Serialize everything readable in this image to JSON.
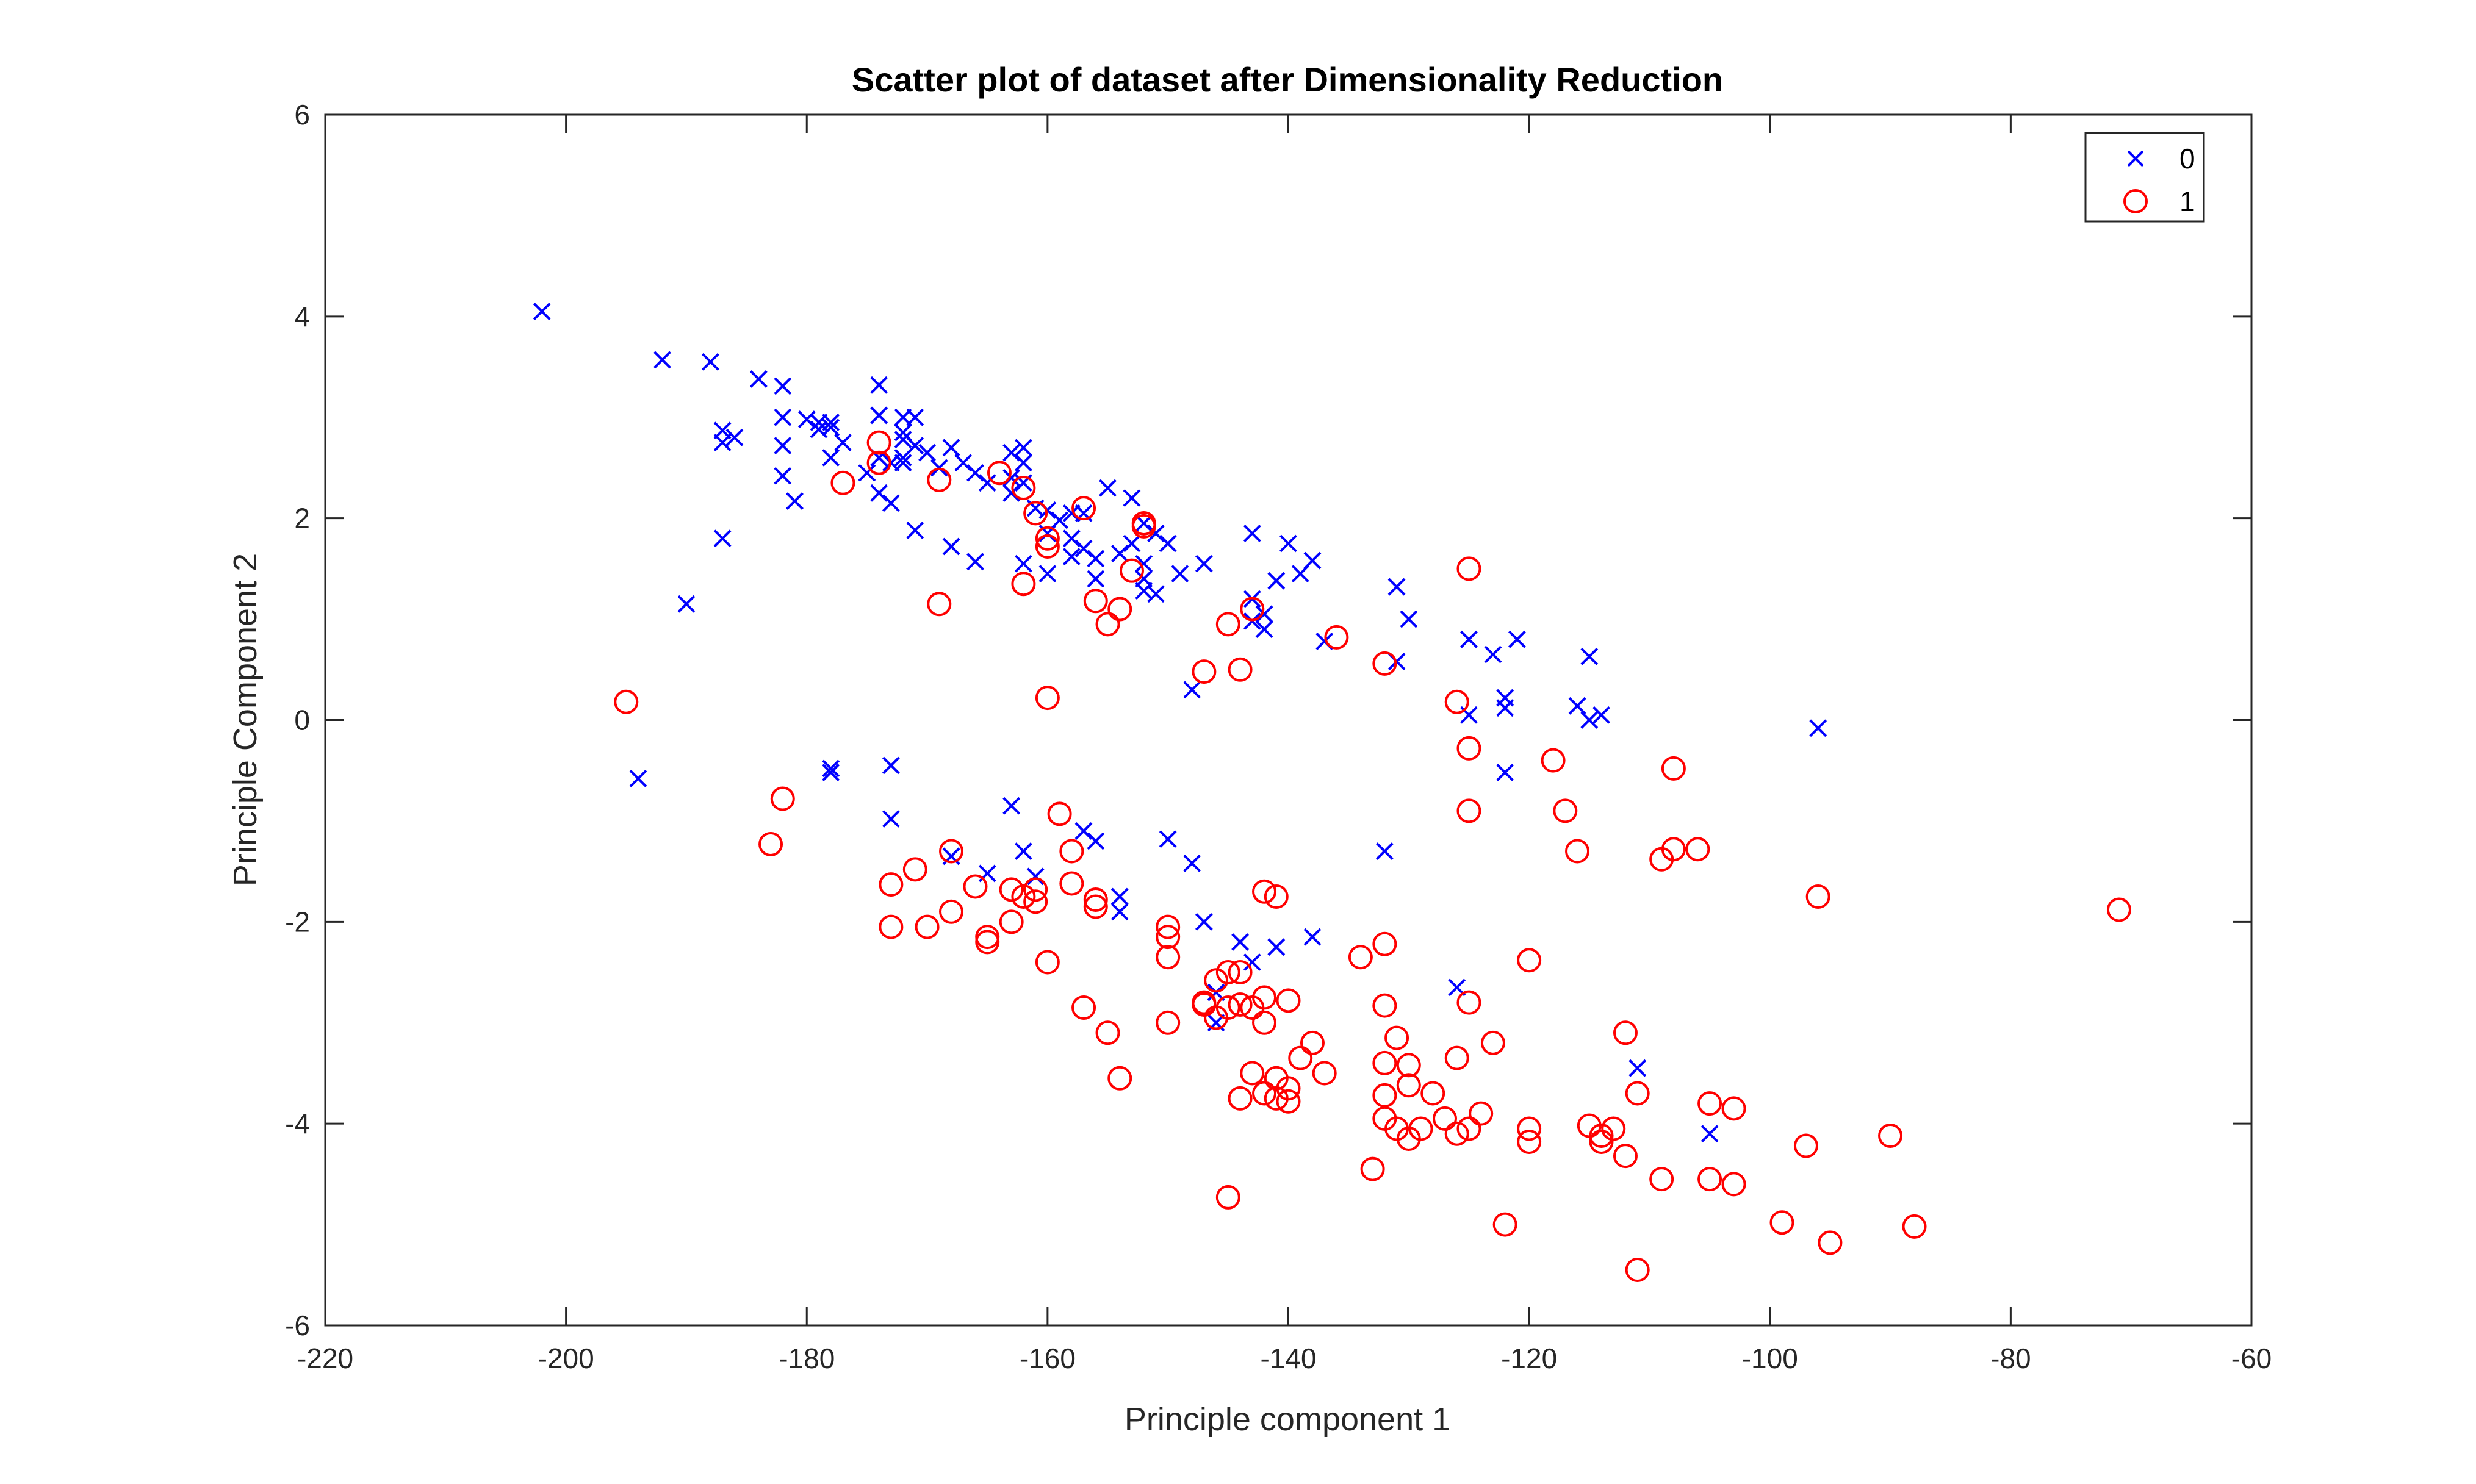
{
  "chart_data": {
    "type": "scatter",
    "title": "Scatter plot of dataset after Dimensionality Reduction",
    "xlabel": "Principle component 1",
    "ylabel": "Principle Component 2",
    "xlim": [
      -220,
      -60
    ],
    "ylim": [
      -6,
      6
    ],
    "xticks": [
      -220,
      -200,
      -180,
      -160,
      -140,
      -120,
      -100,
      -80,
      -60
    ],
    "yticks": [
      -6,
      -4,
      -2,
      0,
      2,
      4,
      6
    ],
    "grid": false,
    "legend": {
      "placement": "top-right",
      "entries": [
        "0",
        "1"
      ]
    },
    "series": [
      {
        "name": "0",
        "marker": "x",
        "color": "#0000ff",
        "points": [
          [
            -202,
            4.05
          ],
          [
            -192,
            3.57
          ],
          [
            -188,
            3.55
          ],
          [
            -184,
            3.38
          ],
          [
            -182,
            3.31
          ],
          [
            -187,
            2.87
          ],
          [
            -186,
            2.8
          ],
          [
            -187,
            2.75
          ],
          [
            -182,
            3.0
          ],
          [
            -182,
            2.72
          ],
          [
            -182,
            2.42
          ],
          [
            -181,
            2.17
          ],
          [
            -187,
            1.8
          ],
          [
            -190,
            1.15
          ],
          [
            -180,
            2.98
          ],
          [
            -179,
            2.95
          ],
          [
            -178,
            2.95
          ],
          [
            -178,
            2.9
          ],
          [
            -179,
            2.88
          ],
          [
            -177,
            2.75
          ],
          [
            -178,
            2.6
          ],
          [
            -174,
            3.32
          ],
          [
            -174,
            3.02
          ],
          [
            -172,
            3.0
          ],
          [
            -171,
            3.0
          ],
          [
            -172,
            2.85
          ],
          [
            -172,
            2.78
          ],
          [
            -171,
            2.72
          ],
          [
            -175,
            2.45
          ],
          [
            -174,
            2.6
          ],
          [
            -173,
            2.55
          ],
          [
            -172,
            2.6
          ],
          [
            -172,
            2.55
          ],
          [
            -170,
            2.65
          ],
          [
            -169,
            2.5
          ],
          [
            -168,
            2.7
          ],
          [
            -167,
            2.55
          ],
          [
            -166,
            2.45
          ],
          [
            -165,
            2.35
          ],
          [
            -174,
            2.25
          ],
          [
            -173,
            2.15
          ],
          [
            -171,
            1.88
          ],
          [
            -168,
            1.72
          ],
          [
            -166,
            1.57
          ],
          [
            -163,
            2.65
          ],
          [
            -162,
            2.7
          ],
          [
            -162,
            2.55
          ],
          [
            -163,
            2.4
          ],
          [
            -162,
            2.35
          ],
          [
            -163,
            2.25
          ],
          [
            -161,
            2.1
          ],
          [
            -160,
            2.08
          ],
          [
            -158,
            2.05
          ],
          [
            -159,
            1.98
          ],
          [
            -157,
            2.05
          ],
          [
            -155,
            2.3
          ],
          [
            -153,
            2.2
          ],
          [
            -152,
            1.95
          ],
          [
            -160,
            1.85
          ],
          [
            -158,
            1.8
          ],
          [
            -157,
            1.7
          ],
          [
            -156,
            1.6
          ],
          [
            -154,
            1.65
          ],
          [
            -153,
            1.75
          ],
          [
            -151,
            1.85
          ],
          [
            -150,
            1.75
          ],
          [
            -152,
            1.55
          ],
          [
            -152,
            1.4
          ],
          [
            -152,
            1.28
          ],
          [
            -151,
            1.25
          ],
          [
            -149,
            1.45
          ],
          [
            -147,
            1.55
          ],
          [
            -160,
            1.45
          ],
          [
            -162,
            1.55
          ],
          [
            -158,
            1.62
          ],
          [
            -156,
            1.4
          ],
          [
            -148,
            0.3
          ],
          [
            -143,
            1.85
          ],
          [
            -140,
            1.75
          ],
          [
            -138,
            1.58
          ],
          [
            -139,
            1.45
          ],
          [
            -141,
            1.38
          ],
          [
            -143,
            1.2
          ],
          [
            -142,
            1.05
          ],
          [
            -143,
            0.98
          ],
          [
            -142,
            0.9
          ],
          [
            -137,
            0.78
          ],
          [
            -131,
            1.32
          ],
          [
            -130,
            1.0
          ],
          [
            -131,
            0.58
          ],
          [
            -125,
            0.8
          ],
          [
            -123,
            0.65
          ],
          [
            -121,
            0.8
          ],
          [
            -122,
            0.22
          ],
          [
            -122,
            0.12
          ],
          [
            -125,
            0.05
          ],
          [
            -122,
            -0.52
          ],
          [
            -116,
            0.14
          ],
          [
            -115,
            0.63
          ],
          [
            -115,
            0.0
          ],
          [
            -114,
            0.05
          ],
          [
            -96,
            -0.08
          ],
          [
            -194,
            -0.58
          ],
          [
            -178,
            -0.48
          ],
          [
            -178,
            -0.52
          ],
          [
            -173,
            -0.45
          ],
          [
            -173,
            -0.98
          ],
          [
            -163,
            -0.85
          ],
          [
            -162,
            -1.3
          ],
          [
            -161,
            -1.55
          ],
          [
            -165,
            -1.52
          ],
          [
            -168,
            -1.35
          ],
          [
            -157,
            -1.1
          ],
          [
            -156,
            -1.2
          ],
          [
            -154,
            -1.75
          ],
          [
            -154,
            -1.9
          ],
          [
            -150,
            -1.18
          ],
          [
            -148,
            -1.42
          ],
          [
            -147,
            -2.0
          ],
          [
            -144,
            -2.2
          ],
          [
            -143,
            -2.4
          ],
          [
            -141,
            -2.25
          ],
          [
            -138,
            -2.15
          ],
          [
            -146,
            -2.7
          ],
          [
            -146,
            -3.0
          ],
          [
            -132,
            -1.3
          ],
          [
            -126,
            -2.65
          ],
          [
            -111,
            -3.45
          ],
          [
            -105,
            -4.1
          ]
        ]
      },
      {
        "name": "1",
        "marker": "o",
        "color": "#ff0000",
        "points": [
          [
            -195,
            0.18
          ],
          [
            -174,
            2.75
          ],
          [
            -174,
            2.55
          ],
          [
            -177,
            2.35
          ],
          [
            -169,
            2.38
          ],
          [
            -169,
            1.15
          ],
          [
            -164,
            2.45
          ],
          [
            -162,
            2.3
          ],
          [
            -161,
            2.05
          ],
          [
            -160,
            1.8
          ],
          [
            -160,
            1.72
          ],
          [
            -162,
            1.35
          ],
          [
            -157,
            2.1
          ],
          [
            -156,
            1.18
          ],
          [
            -155,
            0.95
          ],
          [
            -154,
            1.1
          ],
          [
            -153,
            1.48
          ],
          [
            -152,
            1.92
          ],
          [
            -152,
            1.95
          ],
          [
            -160,
            0.22
          ],
          [
            -147,
            0.48
          ],
          [
            -145,
            0.95
          ],
          [
            -144,
            0.5
          ],
          [
            -143,
            1.1
          ],
          [
            -136,
            0.82
          ],
          [
            -132,
            0.56
          ],
          [
            -125,
            1.5
          ],
          [
            -126,
            0.18
          ],
          [
            -125,
            -0.28
          ],
          [
            -125,
            -0.9
          ],
          [
            -118,
            -0.4
          ],
          [
            -117,
            -0.9
          ],
          [
            -116,
            -1.3
          ],
          [
            -108,
            -0.48
          ],
          [
            -108,
            -1.28
          ],
          [
            -109,
            -1.38
          ],
          [
            -106,
            -1.28
          ],
          [
            -96,
            -1.75
          ],
          [
            -71,
            -1.88
          ],
          [
            -182,
            -0.78
          ],
          [
            -183,
            -1.23
          ],
          [
            -171,
            -1.48
          ],
          [
            -173,
            -1.63
          ],
          [
            -168,
            -1.3
          ],
          [
            -173,
            -2.05
          ],
          [
            -170,
            -2.05
          ],
          [
            -168,
            -1.9
          ],
          [
            -166,
            -1.65
          ],
          [
            -165,
            -2.15
          ],
          [
            -165,
            -2.2
          ],
          [
            -163,
            -2.0
          ],
          [
            -163,
            -1.68
          ],
          [
            -162,
            -1.75
          ],
          [
            -161,
            -1.68
          ],
          [
            -161,
            -1.8
          ],
          [
            -159,
            -0.93
          ],
          [
            -158,
            -1.3
          ],
          [
            -158,
            -1.62
          ],
          [
            -156,
            -1.85
          ],
          [
            -156,
            -1.78
          ],
          [
            -160,
            -2.4
          ],
          [
            -157,
            -2.85
          ],
          [
            -155,
            -3.1
          ],
          [
            -154,
            -3.55
          ],
          [
            -150,
            -2.05
          ],
          [
            -150,
            -2.15
          ],
          [
            -150,
            -2.35
          ],
          [
            -150,
            -3.0
          ],
          [
            -147,
            -2.8
          ],
          [
            -147,
            -2.82
          ],
          [
            -146,
            -2.58
          ],
          [
            -145,
            -2.5
          ],
          [
            -144,
            -2.5
          ],
          [
            -145,
            -2.85
          ],
          [
            -144,
            -2.82
          ],
          [
            -143,
            -2.85
          ],
          [
            -142,
            -2.75
          ],
          [
            -142,
            -3.0
          ],
          [
            -140,
            -2.78
          ],
          [
            -146,
            -2.95
          ],
          [
            -142,
            -1.7
          ],
          [
            -141,
            -1.75
          ],
          [
            -139,
            -3.35
          ],
          [
            -138,
            -3.2
          ],
          [
            -137,
            -3.5
          ],
          [
            -143,
            -3.5
          ],
          [
            -141,
            -3.55
          ],
          [
            -142,
            -3.7
          ],
          [
            -140,
            -3.65
          ],
          [
            -140,
            -3.78
          ],
          [
            -141,
            -3.75
          ],
          [
            -144,
            -3.75
          ],
          [
            -145,
            -4.73
          ],
          [
            -134,
            -2.35
          ],
          [
            -132,
            -2.22
          ],
          [
            -132,
            -2.83
          ],
          [
            -131,
            -3.15
          ],
          [
            -132,
            -3.4
          ],
          [
            -130,
            -3.42
          ],
          [
            -130,
            -3.62
          ],
          [
            -132,
            -3.72
          ],
          [
            -132,
            -3.95
          ],
          [
            -131,
            -4.05
          ],
          [
            -130,
            -4.15
          ],
          [
            -129,
            -4.05
          ],
          [
            -128,
            -3.7
          ],
          [
            -127,
            -3.95
          ],
          [
            -126,
            -3.35
          ],
          [
            -125,
            -2.8
          ],
          [
            -123,
            -3.2
          ],
          [
            -125,
            -4.05
          ],
          [
            -124,
            -3.9
          ],
          [
            -126,
            -4.1
          ],
          [
            -120,
            -2.38
          ],
          [
            -120,
            -4.05
          ],
          [
            -120,
            -4.18
          ],
          [
            -122,
            -5.0
          ],
          [
            -133,
            -4.45
          ],
          [
            -115,
            -4.02
          ],
          [
            -114,
            -4.12
          ],
          [
            -114,
            -4.18
          ],
          [
            -113,
            -4.05
          ],
          [
            -112,
            -4.32
          ],
          [
            -112,
            -3.1
          ],
          [
            -111,
            -3.7
          ],
          [
            -109,
            -4.55
          ],
          [
            -111,
            -5.45
          ],
          [
            -105,
            -3.8
          ],
          [
            -103,
            -3.85
          ],
          [
            -105,
            -4.55
          ],
          [
            -103,
            -4.6
          ],
          [
            -97,
            -4.22
          ],
          [
            -99,
            -4.98
          ],
          [
            -95,
            -5.18
          ],
          [
            -90,
            -4.12
          ],
          [
            -88,
            -5.02
          ]
        ]
      }
    ]
  }
}
